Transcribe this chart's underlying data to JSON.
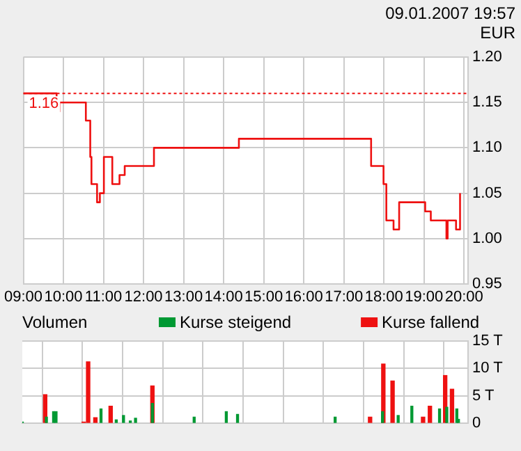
{
  "chart_data": [
    {
      "type": "step",
      "ylabel": "EUR",
      "annotations": [
        "09.01.2007 19:57"
      ],
      "x": [
        9.0,
        9.83,
        9.9,
        10.56,
        10.67,
        10.7,
        10.84,
        10.91,
        11.01,
        11.22,
        11.4,
        11.53,
        12.26,
        14.38,
        17.68,
        17.99,
        18.06,
        18.24,
        18.38,
        19.03,
        19.17,
        19.56,
        19.59,
        19.8,
        19.9
      ],
      "series": [
        {
          "color": "#ee1111",
          "values": [
            1.16,
            1.14,
            1.15,
            1.13,
            1.09,
            1.06,
            1.04,
            1.05,
            1.09,
            1.06,
            1.07,
            1.08,
            1.1,
            1.11,
            1.08,
            1.06,
            1.02,
            1.01,
            1.04,
            1.03,
            1.02,
            1.0,
            1.02,
            1.01,
            1.05
          ]
        }
      ],
      "xlim": [
        9,
        20.1
      ],
      "xticks": [
        {
          "value": 9,
          "label": "09:00"
        },
        {
          "value": 10,
          "label": "10:00"
        },
        {
          "value": 11,
          "label": "11:00"
        },
        {
          "value": 12,
          "label": "12:00"
        },
        {
          "value": 13,
          "label": "13:00"
        },
        {
          "value": 14,
          "label": "14:00"
        },
        {
          "value": 15,
          "label": "15:00"
        },
        {
          "value": 16,
          "label": "16:00"
        },
        {
          "value": 17,
          "label": "17:00"
        },
        {
          "value": 18,
          "label": "18:00"
        },
        {
          "value": 19,
          "label": "19:00"
        },
        {
          "value": 20,
          "label": "20:00"
        }
      ],
      "ylim": [
        0.95,
        1.2
      ],
      "yticks": [
        0.95,
        {
          "value": 1.0,
          "label": "1.00"
        },
        1.05,
        {
          "value": 1.1,
          "label": "1.10"
        },
        1.15,
        {
          "value": 1.2,
          "label": "1.20"
        }
      ],
      "ref_lines": [
        {
          "axis": "y",
          "value": 1.16,
          "label": "1.16",
          "color": "#ee1111",
          "line_style": "dotted"
        }
      ],
      "grid": true,
      "legend": false,
      "marker": "none"
    },
    {
      "type": "bar",
      "title": "Volumen",
      "legend": "top",
      "series": [
        {
          "name": "Kurse steigend",
          "color": "#009933",
          "x": [
            9.0,
            9.6,
            9.78,
            9.84,
            10.96,
            11.34,
            11.52,
            11.69,
            11.82,
            12.24,
            13.28,
            14.08,
            14.36,
            16.79,
            17.97,
            18.36,
            18.7,
            19.39,
            19.57,
            19.82,
            19.86
          ],
          "values": [
            0.2,
            1.1,
            2.1,
            2.1,
            2.6,
            0.6,
            1.4,
            0.4,
            0.9,
            3.6,
            1.1,
            2.1,
            1.6,
            1.1,
            2.1,
            1.4,
            3.1,
            2.6,
            2.9,
            2.6,
            0.7
          ]
        },
        {
          "name": "Kurse fallend",
          "color": "#ee1111",
          "x": [
            9.57,
            10.53,
            10.64,
            10.82,
            11.2,
            12.24,
            17.66,
            17.99,
            18.22,
            18.98,
            19.15,
            19.53,
            19.7
          ],
          "values": [
            5.2,
            0.2,
            11.2,
            1.0,
            3.1,
            6.8,
            1.1,
            10.8,
            7.7,
            1.1,
            3.1,
            8.7,
            6.2
          ]
        }
      ],
      "xlim": [
        9,
        20.1
      ],
      "xticks": [
        9,
        10,
        11,
        12,
        13,
        14,
        15,
        16,
        17,
        18,
        19,
        20
      ],
      "tick_labels": "y",
      "ylim": [
        0,
        15
      ],
      "yticks": [
        0,
        {
          "value": 5,
          "label": "5 T"
        },
        {
          "value": 10,
          "label": "10 T"
        },
        {
          "value": 15,
          "label": "15 T"
        }
      ],
      "grid": true
    }
  ]
}
